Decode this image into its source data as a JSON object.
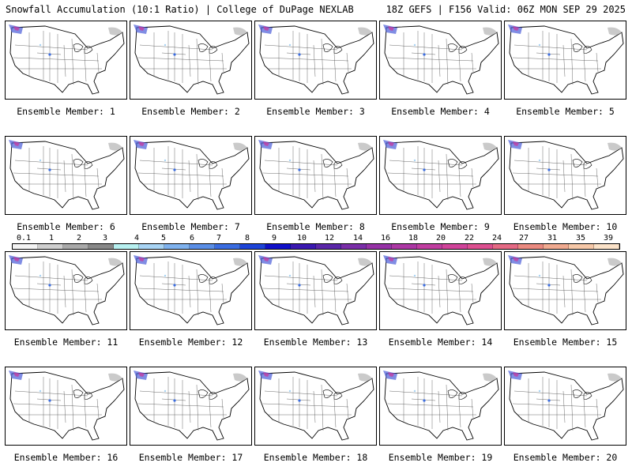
{
  "header": {
    "title_left": "Snowfall Accumulation (10:1 Ratio) | College of DuPage NEXLAB",
    "title_right": "18Z GEFS | F156 Valid: 06Z MON SEP 29 2025"
  },
  "members": [
    {
      "label": "Ensemble Member: 1"
    },
    {
      "label": "Ensemble Member: 2"
    },
    {
      "label": "Ensemble Member: 3"
    },
    {
      "label": "Ensemble Member: 4"
    },
    {
      "label": "Ensemble Member: 5"
    },
    {
      "label": "Ensemble Member: 6"
    },
    {
      "label": "Ensemble Member: 7"
    },
    {
      "label": "Ensemble Member: 8"
    },
    {
      "label": "Ensemble Member: 9"
    },
    {
      "label": "Ensemble Member: 10"
    },
    {
      "label": "Ensemble Member: 11"
    },
    {
      "label": "Ensemble Member: 12"
    },
    {
      "label": "Ensemble Member: 13"
    },
    {
      "label": "Ensemble Member: 14"
    },
    {
      "label": "Ensemble Member: 15"
    },
    {
      "label": "Ensemble Member: 16"
    },
    {
      "label": "Ensemble Member: 17"
    },
    {
      "label": "Ensemble Member: 18"
    },
    {
      "label": "Ensemble Member: 19"
    },
    {
      "label": "Ensemble Member: 20"
    }
  ],
  "colorbar": {
    "labels": [
      "0.1",
      "1",
      "2",
      "3",
      "4",
      "5",
      "6",
      "7",
      "8",
      "9",
      "10",
      "12",
      "14",
      "16",
      "18",
      "20",
      "22",
      "24",
      "27",
      "31",
      "35",
      "39"
    ],
    "colors": [
      "#f4f4f4",
      "#cfcfcf",
      "#a9a9a9",
      "#888888",
      "#b7f0f0",
      "#a8d4f4",
      "#7fb2ee",
      "#5a8ee6",
      "#3a6ce0",
      "#1e44d8",
      "#1010c8",
      "#3a18b0",
      "#5a26a8",
      "#7a2ea8",
      "#9632a6",
      "#ac38a4",
      "#c03ea0",
      "#d0449a",
      "#dc5090",
      "#e46a84",
      "#ea8a80",
      "#f0aa90",
      "#f6c8a8",
      "#fbe2c8"
    ]
  }
}
